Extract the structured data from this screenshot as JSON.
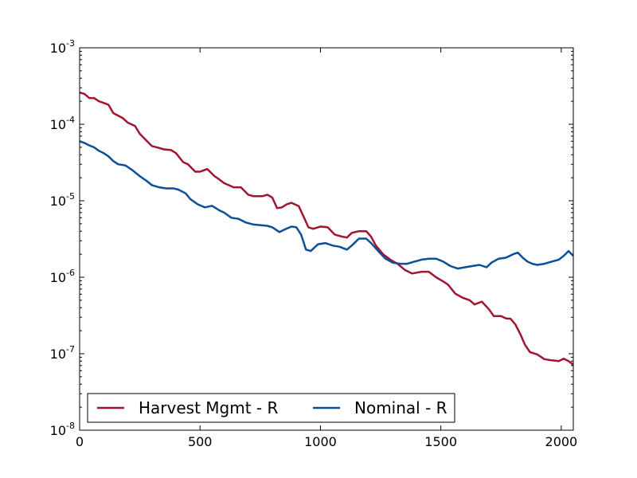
{
  "chart_data": {
    "type": "line",
    "title": "",
    "xlabel": "",
    "ylabel": "",
    "xlim": [
      0,
      2050
    ],
    "ylim": [
      1e-08,
      0.001
    ],
    "yscale": "log",
    "grid": false,
    "legend_position": "lower-left",
    "x_ticks": [
      {
        "value": 0,
        "label": "0"
      },
      {
        "value": 500,
        "label": "500"
      },
      {
        "value": 1000,
        "label": "1000"
      },
      {
        "value": 1500,
        "label": "1500"
      },
      {
        "value": 2000,
        "label": "2000"
      }
    ],
    "y_ticks": [
      {
        "value": 0.001,
        "base": "10",
        "exp": "-3"
      },
      {
        "value": 0.0001,
        "base": "10",
        "exp": "-4"
      },
      {
        "value": 1e-05,
        "base": "10",
        "exp": "-5"
      },
      {
        "value": 1e-06,
        "base": "10",
        "exp": "-6"
      },
      {
        "value": 1e-07,
        "base": "10",
        "exp": "-7"
      },
      {
        "value": 1e-08,
        "base": "10",
        "exp": "-8"
      }
    ],
    "series": [
      {
        "name": "Harvest Mgmt - R",
        "color": "#a2142f",
        "points": [
          [
            0,
            0.00026
          ],
          [
            20,
            0.00025
          ],
          [
            40,
            0.00022
          ],
          [
            60,
            0.00022
          ],
          [
            80,
            0.0002
          ],
          [
            100,
            0.00019
          ],
          [
            120,
            0.00018
          ],
          [
            140,
            0.00014
          ],
          [
            160,
            0.00013
          ],
          [
            180,
            0.00012
          ],
          [
            200,
            0.000105
          ],
          [
            230,
            9.5e-05
          ],
          [
            250,
            7.5e-05
          ],
          [
            280,
            6e-05
          ],
          [
            300,
            5.2e-05
          ],
          [
            330,
            4.9e-05
          ],
          [
            350,
            4.7e-05
          ],
          [
            380,
            4.6e-05
          ],
          [
            400,
            4.2e-05
          ],
          [
            430,
            3.2e-05
          ],
          [
            450,
            3e-05
          ],
          [
            480,
            2.4e-05
          ],
          [
            500,
            2.4e-05
          ],
          [
            530,
            2.6e-05
          ],
          [
            560,
            2.1e-05
          ],
          [
            580,
            1.9e-05
          ],
          [
            600,
            1.7e-05
          ],
          [
            640,
            1.5e-05
          ],
          [
            670,
            1.5e-05
          ],
          [
            700,
            1.2e-05
          ],
          [
            720,
            1.15e-05
          ],
          [
            760,
            1.15e-05
          ],
          [
            780,
            1.2e-05
          ],
          [
            800,
            1.1e-05
          ],
          [
            820,
            8e-06
          ],
          [
            840,
            8.2e-06
          ],
          [
            860,
            9e-06
          ],
          [
            880,
            9.4e-06
          ],
          [
            910,
            8.5e-06
          ],
          [
            930,
            6.2e-06
          ],
          [
            950,
            4.5e-06
          ],
          [
            970,
            4.3e-06
          ],
          [
            1000,
            4.6e-06
          ],
          [
            1030,
            4.5e-06
          ],
          [
            1060,
            3.6e-06
          ],
          [
            1090,
            3.4e-06
          ],
          [
            1110,
            3.3e-06
          ],
          [
            1130,
            3.8e-06
          ],
          [
            1160,
            4e-06
          ],
          [
            1190,
            4e-06
          ],
          [
            1210,
            3.4e-06
          ],
          [
            1230,
            2.6e-06
          ],
          [
            1260,
            2e-06
          ],
          [
            1290,
            1.7e-06
          ],
          [
            1320,
            1.5e-06
          ],
          [
            1350,
            1.25e-06
          ],
          [
            1380,
            1.12e-06
          ],
          [
            1420,
            1.18e-06
          ],
          [
            1450,
            1.18e-06
          ],
          [
            1480,
            1e-06
          ],
          [
            1510,
            8.8e-07
          ],
          [
            1530,
            8e-07
          ],
          [
            1560,
            6.1e-07
          ],
          [
            1590,
            5.4e-07
          ],
          [
            1620,
            5e-07
          ],
          [
            1640,
            4.4e-07
          ],
          [
            1670,
            4.8e-07
          ],
          [
            1700,
            3.8e-07
          ],
          [
            1720,
            3.1e-07
          ],
          [
            1750,
            3.1e-07
          ],
          [
            1770,
            2.9e-07
          ],
          [
            1790,
            2.85e-07
          ],
          [
            1810,
            2.4e-07
          ],
          [
            1830,
            1.8e-07
          ],
          [
            1850,
            1.3e-07
          ],
          [
            1870,
            1.05e-07
          ],
          [
            1900,
            9.8e-08
          ],
          [
            1930,
            8.5e-08
          ],
          [
            1960,
            8.2e-08
          ],
          [
            1990,
            8e-08
          ],
          [
            2010,
            8.6e-08
          ],
          [
            2030,
            8e-08
          ],
          [
            2050,
            7.2e-08
          ]
        ]
      },
      {
        "name": "Nominal - R",
        "color": "#0b4f99",
        "points": [
          [
            0,
            6e-05
          ],
          [
            20,
            5.7e-05
          ],
          [
            40,
            5.3e-05
          ],
          [
            60,
            5e-05
          ],
          [
            80,
            4.5e-05
          ],
          [
            100,
            4.2e-05
          ],
          [
            120,
            3.8e-05
          ],
          [
            140,
            3.3e-05
          ],
          [
            160,
            3e-05
          ],
          [
            190,
            2.9e-05
          ],
          [
            220,
            2.5e-05
          ],
          [
            250,
            2.1e-05
          ],
          [
            280,
            1.8e-05
          ],
          [
            300,
            1.6e-05
          ],
          [
            330,
            1.5e-05
          ],
          [
            360,
            1.45e-05
          ],
          [
            390,
            1.45e-05
          ],
          [
            410,
            1.4e-05
          ],
          [
            440,
            1.25e-05
          ],
          [
            460,
            1.05e-05
          ],
          [
            490,
            9e-06
          ],
          [
            520,
            8.2e-06
          ],
          [
            550,
            8.6e-06
          ],
          [
            580,
            7.5e-06
          ],
          [
            600,
            7e-06
          ],
          [
            630,
            6e-06
          ],
          [
            660,
            5.8e-06
          ],
          [
            690,
            5.2e-06
          ],
          [
            720,
            4.9e-06
          ],
          [
            750,
            4.8e-06
          ],
          [
            780,
            4.7e-06
          ],
          [
            800,
            4.5e-06
          ],
          [
            830,
            3.9e-06
          ],
          [
            850,
            4.2e-06
          ],
          [
            880,
            4.6e-06
          ],
          [
            900,
            4.5e-06
          ],
          [
            920,
            3.6e-06
          ],
          [
            940,
            2.3e-06
          ],
          [
            960,
            2.2e-06
          ],
          [
            990,
            2.7e-06
          ],
          [
            1020,
            2.8e-06
          ],
          [
            1050,
            2.6e-06
          ],
          [
            1080,
            2.5e-06
          ],
          [
            1110,
            2.3e-06
          ],
          [
            1130,
            2.6e-06
          ],
          [
            1160,
            3.2e-06
          ],
          [
            1190,
            3.2e-06
          ],
          [
            1210,
            2.8e-06
          ],
          [
            1240,
            2.2e-06
          ],
          [
            1270,
            1.75e-06
          ],
          [
            1300,
            1.55e-06
          ],
          [
            1330,
            1.5e-06
          ],
          [
            1360,
            1.5e-06
          ],
          [
            1390,
            1.6e-06
          ],
          [
            1420,
            1.7e-06
          ],
          [
            1450,
            1.75e-06
          ],
          [
            1480,
            1.75e-06
          ],
          [
            1510,
            1.6e-06
          ],
          [
            1540,
            1.4e-06
          ],
          [
            1570,
            1.3e-06
          ],
          [
            1600,
            1.35e-06
          ],
          [
            1630,
            1.4e-06
          ],
          [
            1660,
            1.45e-06
          ],
          [
            1690,
            1.35e-06
          ],
          [
            1710,
            1.55e-06
          ],
          [
            1740,
            1.75e-06
          ],
          [
            1770,
            1.8e-06
          ],
          [
            1800,
            2e-06
          ],
          [
            1820,
            2.1e-06
          ],
          [
            1840,
            1.8e-06
          ],
          [
            1860,
            1.6e-06
          ],
          [
            1880,
            1.5e-06
          ],
          [
            1900,
            1.45e-06
          ],
          [
            1930,
            1.5e-06
          ],
          [
            1960,
            1.6e-06
          ],
          [
            1990,
            1.7e-06
          ],
          [
            2010,
            1.9e-06
          ],
          [
            2030,
            2.2e-06
          ],
          [
            2050,
            1.9e-06
          ]
        ]
      }
    ]
  }
}
